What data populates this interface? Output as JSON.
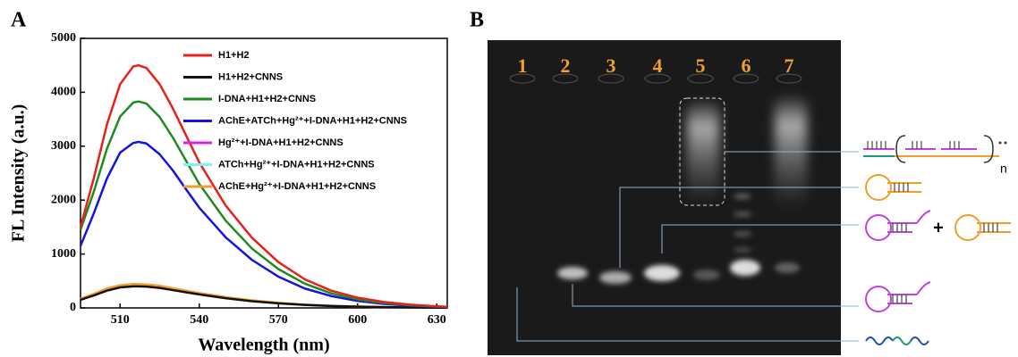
{
  "panel_labels": [
    "A",
    "B"
  ],
  "chart_data": {
    "type": "line",
    "x_label": "Wavelength (nm)",
    "y_label": "FL Intensity (a.u.)",
    "x": [
      495,
      500,
      505,
      510,
      515,
      517,
      520,
      525,
      530,
      535,
      540,
      550,
      560,
      570,
      580,
      590,
      600,
      610,
      620,
      630,
      634
    ],
    "xlim": [
      495,
      634
    ],
    "xticks": [
      510,
      540,
      570,
      600,
      630
    ],
    "ylim": [
      0,
      5000
    ],
    "yticks": [
      0,
      1000,
      2000,
      3000,
      4000,
      5000
    ],
    "grid": false,
    "legend": "top-right",
    "series": [
      {
        "name": "H1+H2",
        "color": "#e8201a",
        "values": [
          1500,
          2400,
          3400,
          4150,
          4480,
          4500,
          4450,
          4150,
          3700,
          3200,
          2700,
          1900,
          1300,
          850,
          530,
          320,
          190,
          110,
          60,
          30,
          20
        ]
      },
      {
        "name": "H1+H2+CNNS",
        "color": "#111111",
        "values": [
          150,
          230,
          320,
          380,
          400,
          400,
          395,
          370,
          330,
          290,
          250,
          180,
          125,
          85,
          55,
          35,
          22,
          14,
          8,
          5,
          4
        ]
      },
      {
        "name": "I-DNA+H1+H2+CNNS",
        "color": "#1f8a1f",
        "values": [
          1450,
          2150,
          2950,
          3550,
          3810,
          3830,
          3790,
          3540,
          3160,
          2730,
          2300,
          1620,
          1100,
          720,
          450,
          270,
          160,
          90,
          50,
          25,
          20
        ]
      },
      {
        "name": "AChE+ATCh+Hg²⁺+I-DNA+H1+H2+CNNS",
        "color": "#1414e0",
        "values": [
          1150,
          1750,
          2400,
          2880,
          3060,
          3080,
          3050,
          2850,
          2550,
          2200,
          1860,
          1310,
          890,
          580,
          360,
          220,
          130,
          75,
          40,
          20,
          15
        ]
      },
      {
        "name": "Hg²⁺+I-DNA+H1+H2+CNNS",
        "color": "#e020e0",
        "values": [
          160,
          250,
          345,
          405,
          425,
          425,
          420,
          395,
          352,
          308,
          265,
          192,
          133,
          90,
          58,
          37,
          23,
          14,
          8,
          5,
          4
        ]
      },
      {
        "name": "ATCh+Hg²⁺+I-DNA+H1+H2+CNNS",
        "color": "#80f0f0",
        "values": [
          165,
          255,
          352,
          412,
          432,
          432,
          428,
          402,
          358,
          314,
          270,
          196,
          137,
          92,
          59,
          38,
          24,
          15,
          9,
          5,
          4
        ]
      },
      {
        "name": "AChE+Hg²⁺+I-DNA+H1+H2+CNNS",
        "color": "#f39c2a",
        "values": [
          170,
          260,
          360,
          420,
          440,
          440,
          435,
          410,
          365,
          320,
          275,
          200,
          140,
          95,
          60,
          40,
          25,
          15,
          9,
          5,
          4
        ]
      }
    ]
  },
  "gel": {
    "lanes": [
      "1",
      "2",
      "3",
      "4",
      "5",
      "6",
      "7"
    ],
    "plus": "+",
    "repeat": "n"
  }
}
